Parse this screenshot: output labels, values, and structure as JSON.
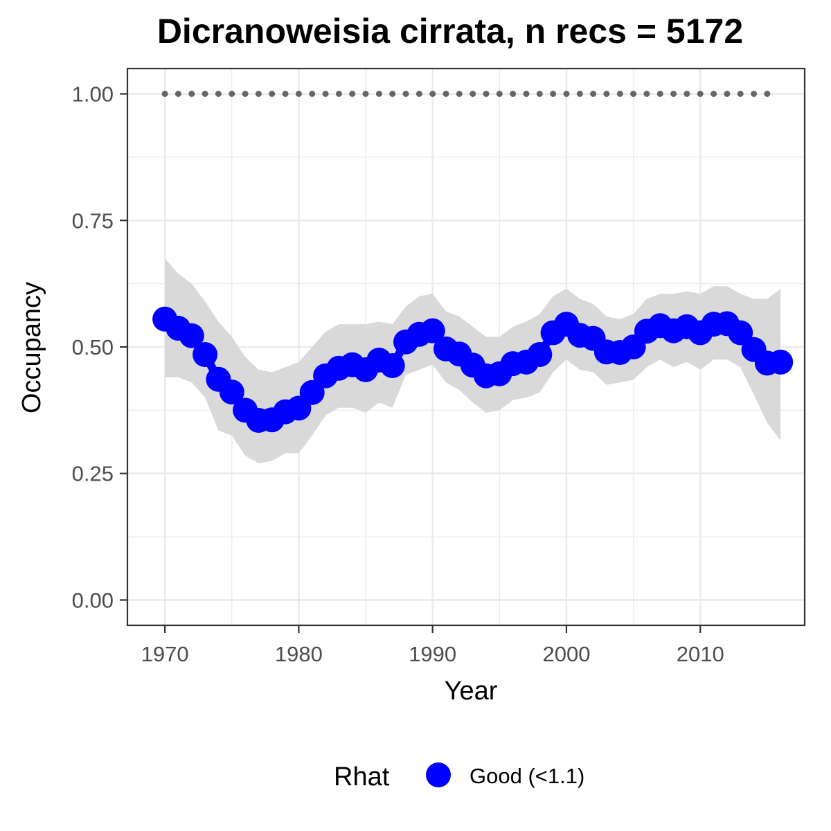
{
  "chart_data": {
    "type": "line",
    "title": "Dicranoweisia cirrata, n recs = 5172",
    "xlabel": "Year",
    "ylabel": "Occupancy",
    "xlim": [
      1967.2,
      2017.8
    ],
    "ylim": [
      -0.05,
      1.05
    ],
    "x_ticks": [
      1970,
      1980,
      1990,
      2000,
      2010
    ],
    "x_tick_labels": [
      "1970",
      "1980",
      "1990",
      "2000",
      "2010"
    ],
    "y_ticks": [
      0,
      0.25,
      0.5,
      0.75,
      1.0
    ],
    "y_tick_labels": [
      "0.00",
      "0.25",
      "0.50",
      "0.75",
      "1.00"
    ],
    "grid": true,
    "legend": {
      "title": "Rhat",
      "position": "bottom",
      "entries": [
        {
          "label": "Good (<1.1)",
          "color": "#0000ff"
        }
      ]
    },
    "colors": {
      "series": "#0000ff",
      "ribbon": "#d9d9d9",
      "reference_dots": "#666666",
      "grid": "#ebebeb",
      "panel_border": "#333333"
    },
    "x": [
      1970,
      1971,
      1972,
      1973,
      1974,
      1975,
      1976,
      1977,
      1978,
      1979,
      1980,
      1981,
      1982,
      1983,
      1984,
      1985,
      1986,
      1987,
      1988,
      1989,
      1990,
      1991,
      1992,
      1993,
      1994,
      1995,
      1996,
      1997,
      1998,
      1999,
      2000,
      2001,
      2002,
      2003,
      2004,
      2005,
      2006,
      2007,
      2008,
      2009,
      2010,
      2011,
      2012,
      2013,
      2014,
      2015,
      2016
    ],
    "series": [
      {
        "values": [
          0.555,
          0.537,
          0.522,
          0.485,
          0.436,
          0.411,
          0.375,
          0.355,
          0.356,
          0.372,
          0.379,
          0.41,
          0.443,
          0.458,
          0.465,
          0.455,
          0.474,
          0.463,
          0.51,
          0.525,
          0.532,
          0.496,
          0.486,
          0.464,
          0.443,
          0.447,
          0.467,
          0.47,
          0.485,
          0.528,
          0.545,
          0.523,
          0.517,
          0.49,
          0.489,
          0.5,
          0.531,
          0.542,
          0.532,
          0.54,
          0.528,
          0.545,
          0.546,
          0.528,
          0.495,
          0.468,
          0.47
        ],
        "lower": [
          0.44,
          0.44,
          0.43,
          0.4,
          0.335,
          0.325,
          0.285,
          0.27,
          0.275,
          0.29,
          0.29,
          0.325,
          0.365,
          0.38,
          0.38,
          0.37,
          0.39,
          0.38,
          0.445,
          0.455,
          0.465,
          0.43,
          0.415,
          0.39,
          0.37,
          0.375,
          0.395,
          0.4,
          0.41,
          0.45,
          0.475,
          0.455,
          0.45,
          0.425,
          0.43,
          0.435,
          0.46,
          0.475,
          0.46,
          0.47,
          0.455,
          0.475,
          0.475,
          0.46,
          0.405,
          0.35,
          0.315
        ],
        "upper": [
          0.675,
          0.645,
          0.625,
          0.59,
          0.55,
          0.52,
          0.48,
          0.455,
          0.45,
          0.46,
          0.47,
          0.5,
          0.53,
          0.545,
          0.545,
          0.545,
          0.55,
          0.545,
          0.58,
          0.6,
          0.605,
          0.57,
          0.56,
          0.54,
          0.52,
          0.52,
          0.54,
          0.55,
          0.565,
          0.6,
          0.615,
          0.595,
          0.585,
          0.56,
          0.555,
          0.565,
          0.595,
          0.605,
          0.605,
          0.61,
          0.605,
          0.62,
          0.62,
          0.605,
          0.595,
          0.595,
          0.615
        ]
      }
    ],
    "reference_line": {
      "y": 1.0,
      "x_start": 1970,
      "x_end": 2015,
      "style": "dotted"
    }
  }
}
